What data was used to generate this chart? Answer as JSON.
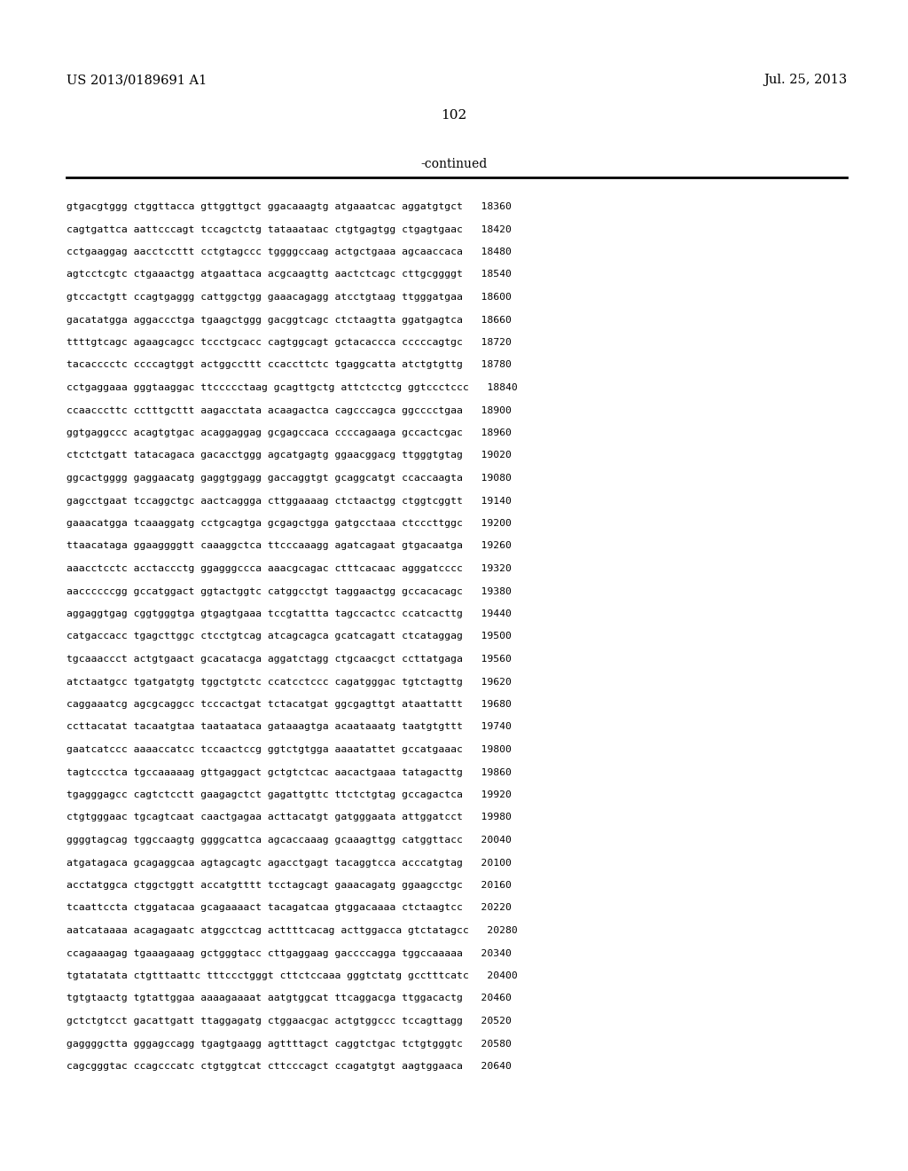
{
  "header_left": "US 2013/0189691 A1",
  "header_right": "Jul. 25, 2013",
  "page_number": "102",
  "continued_label": "-continued",
  "background_color": "#ffffff",
  "text_color": "#000000",
  "sequence_lines": [
    "gtgacgtggg ctggttacca gttggttgct ggacaaagtg atgaaatcac aggatgtgct   18360",
    "cagtgattca aattcccagt tccagctctg tataaataac ctgtgagtgg ctgagtgaac   18420",
    "cctgaaggag aacctccttt cctgtagccc tggggccaag actgctgaaa agcaaccaca   18480",
    "agtcctcgtc ctgaaactgg atgaattaca acgcaagttg aactctcagc cttgcggggt   18540",
    "gtccactgtt ccagtgaggg cattggctgg gaaacagagg atcctgtaag ttgggatgaa   18600",
    "gacatatgga aggaccctga tgaagctggg gacggtcagc ctctaagtta ggatgagtca   18660",
    "ttttgtcagc agaagcagcc tccctgcacc cagtggcagt gctacaccca cccccagtgc   18720",
    "tacacccctc ccccagtggt actggccttt ccaccttctc tgaggcatta atctgtgttg   18780",
    "cctgaggaaa gggtaaggac ttccccctaag gcagttgctg attctcctcg ggtccctccc   18840",
    "ccaacccttc cctttgcttt aagacctata acaagactca cagcccagca ggcccctgaa   18900",
    "ggtgaggccc acagtgtgac acaggaggag gcgagccaca ccccagaaga gccactcgac   18960",
    "ctctctgatt tatacagaca gacacctggg agcatgagtg ggaacggacg ttgggtgtag   19020",
    "ggcactgggg gaggaacatg gaggtggagg gaccaggtgt gcaggcatgt ccaccaagta   19080",
    "gagcctgaat tccaggctgc aactcaggga cttggaaaag ctctaactgg ctggtcggtt   19140",
    "gaaacatgga tcaaaggatg cctgcagtga gcgagctgga gatgcctaaa ctcccttggc   19200",
    "ttaacataga ggaaggggtt caaaggctca ttcccaaagg agatcagaat gtgacaatga   19260",
    "aaacctcctc acctaccctg ggagggccca aaacgcagac ctttcacaac agggatcccc   19320",
    "aaccccccgg gccatggact ggtactggtc catggcctgt taggaactgg gccacacagc   19380",
    "aggaggtgag cggtgggtga gtgagtgaaa tccgtattta tagccactcc ccatcacttg   19440",
    "catgaccacc tgagcttggc ctcctgtcag atcagcagca gcatcagatt ctcataggag   19500",
    "tgcaaaccct actgtgaact gcacatacga aggatctagg ctgcaacgct ccttatgaga   19560",
    "atctaatgcc tgatgatgtg tggctgtctc ccatcctccc cagatgggac tgtctagttg   19620",
    "caggaaatcg agcgcaggcc tcccactgat tctacatgat ggcgagttgt ataattattt   19680",
    "ccttacatat tacaatgtaa taataataca gataaagtga acaataaatg taatgtgttt   19740",
    "gaatcatccc aaaaccatcc tccaactccg ggtctgtgga aaaatattet gccatgaaac   19800",
    "tagtccctca tgccaaaaag gttgaggact gctgtctcac aacactgaaa tatagacttg   19860",
    "tgagggagcc cagtctcctt gaagagctct gagattgttc ttctctgtag gccagactca   19920",
    "ctgtgggaac tgcagtcaat caactgagaa acttacatgt gatgggaata attggatcct   19980",
    "ggggtagcag tggccaagtg ggggcattca agcaccaaag gcaaagttgg catggttacc   20040",
    "atgatagaca gcagaggcaa agtagcagtc agacctgagt tacaggtcca acccatgtag   20100",
    "acctatggca ctggctggtt accatgtttt tcctagcagt gaaacagatg ggaagcctgc   20160",
    "tcaattccta ctggatacaa gcagaaaact tacagatcaa gtggacaaaa ctctaagtcc   20220",
    "aatcataaaa acagagaatc atggcctcag acttttcacag acttggacca gtctatagcc   20280",
    "ccagaaagag tgaaagaaag gctgggtacc cttgaggaag gaccccagga tggccaaaaa   20340",
    "tgtatatata ctgtttaattc tttccctgggt cttctccaaa gggtctatg gcctttcatc   20400",
    "tgtgtaactg tgtattggaa aaaagaaaat aatgtggcat ttcaggacga ttggacactg   20460",
    "gctctgtcct gacattgatt ttaggagatg ctggaacgac actgtggccc tccagttagg   20520",
    "gaggggctta gggagccagg tgagtgaagg agttttagct caggtctgac tctgtgggtc   20580",
    "cagcgggtac ccagcccatc ctgtggtcat cttcccagct ccagatgtgt aagtggaaca   20640"
  ]
}
